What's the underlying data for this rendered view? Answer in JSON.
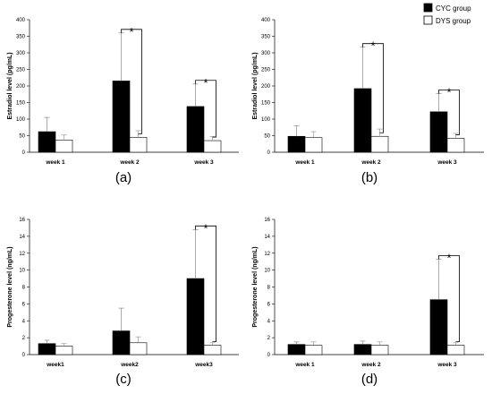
{
  "legend": [
    {
      "name": "CYC group",
      "color": "#000000"
    },
    {
      "name": "DYS group",
      "color": "#ffffff"
    }
  ],
  "chart_data": [
    {
      "type": "bar",
      "panel": "(a)",
      "ylabel": "Estradiol level (pg/mL)",
      "ylim": [
        0,
        400
      ],
      "yticks": [
        "0",
        "50",
        "100",
        "150",
        "200",
        "250",
        "300",
        "350",
        "400"
      ],
      "categories": [
        "week 1",
        "week 2",
        "week 3"
      ],
      "series": [
        {
          "name": "CYC group",
          "values": [
            62,
            215,
            138
          ],
          "errors": [
            43,
            145,
            68
          ]
        },
        {
          "name": "DYS group",
          "values": [
            37,
            45,
            35
          ],
          "errors": [
            15,
            20,
            12
          ]
        }
      ],
      "significance": [
        {
          "category": "week 2",
          "label": "*"
        },
        {
          "category": "week 3",
          "label": "*"
        }
      ]
    },
    {
      "type": "bar",
      "panel": "(b)",
      "ylabel": "Estradiol level (pg/mL)",
      "ylim": [
        0,
        400
      ],
      "yticks": [
        "0",
        "50",
        "100",
        "150",
        "200",
        "250",
        "300",
        "350",
        "400"
      ],
      "categories": [
        "week 1",
        "week 2",
        "week 3"
      ],
      "series": [
        {
          "name": "CYC group",
          "values": [
            48,
            192,
            122
          ],
          "errors": [
            32,
            125,
            55
          ]
        },
        {
          "name": "DYS group",
          "values": [
            44,
            48,
            42
          ],
          "errors": [
            18,
            22,
            15
          ]
        }
      ],
      "significance": [
        {
          "category": "week 2",
          "label": "*"
        },
        {
          "category": "week 3",
          "label": "*"
        }
      ]
    },
    {
      "type": "bar",
      "panel": "(c)",
      "ylabel": "Progesterone level (ng/mL)",
      "ylim": [
        0,
        16
      ],
      "yticks": [
        "0",
        "2",
        "4",
        "6",
        "8",
        "10",
        "12",
        "14",
        "16"
      ],
      "categories": [
        "week1",
        "week2",
        "week3"
      ],
      "series": [
        {
          "name": "CYC group",
          "values": [
            1.3,
            2.8,
            9.0
          ],
          "errors": [
            0.4,
            2.7,
            5.8
          ]
        },
        {
          "name": "DYS group",
          "values": [
            1.0,
            1.4,
            1.1
          ],
          "errors": [
            0.3,
            0.7,
            0.3
          ]
        }
      ],
      "significance": [
        {
          "category": "week3",
          "label": "*"
        }
      ]
    },
    {
      "type": "bar",
      "panel": "(d)",
      "ylabel": "Progesterone level (ng/mL)",
      "ylim": [
        0,
        16
      ],
      "yticks": [
        "0",
        "2",
        "4",
        "6",
        "8",
        "10",
        "12",
        "14",
        "16"
      ],
      "categories": [
        "week 1",
        "week 2",
        "week 3"
      ],
      "series": [
        {
          "name": "CYC group",
          "values": [
            1.2,
            1.2,
            6.5
          ],
          "errors": [
            0.3,
            0.4,
            4.8
          ]
        },
        {
          "name": "DYS group",
          "values": [
            1.1,
            1.1,
            1.1
          ],
          "errors": [
            0.4,
            0.4,
            0.3
          ]
        }
      ],
      "significance": [
        {
          "category": "week 3",
          "label": "*"
        }
      ]
    }
  ]
}
